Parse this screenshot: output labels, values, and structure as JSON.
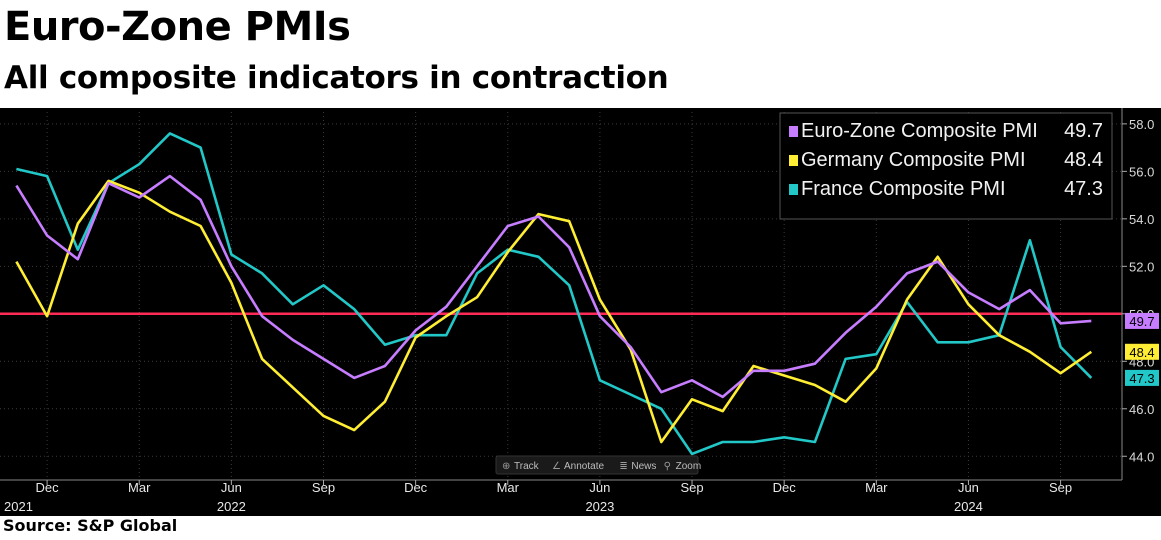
{
  "header": {
    "title": "Euro-Zone PMIs",
    "subtitle": "All composite indicators in contraction"
  },
  "footer": {
    "source": "Source: S&P Global"
  },
  "toolbar": {
    "items": [
      {
        "icon": "crosshair-icon",
        "glyph": "⊕",
        "label": "Track"
      },
      {
        "icon": "pencil-icon",
        "glyph": "∠",
        "label": "Annotate"
      },
      {
        "icon": "news-icon",
        "glyph": "≣",
        "label": "News"
      },
      {
        "icon": "magnifier-icon",
        "glyph": "⚲",
        "label": "Zoom"
      }
    ]
  },
  "chart_data": {
    "type": "line",
    "title": "",
    "ylim": [
      43.0,
      58.5
    ],
    "yticks": [
      44,
      46,
      48,
      50,
      52,
      54,
      56,
      58
    ],
    "ytick_labels": [
      "44.0",
      "46.0",
      "48.0",
      "50.0",
      "52.0",
      "54.0",
      "56.0",
      "58.0"
    ],
    "x": [
      "2021-11",
      "2021-12",
      "2022-01",
      "2022-02",
      "2022-03",
      "2022-04",
      "2022-05",
      "2022-06",
      "2022-07",
      "2022-08",
      "2022-09",
      "2022-10",
      "2022-11",
      "2022-12",
      "2023-01",
      "2023-02",
      "2023-03",
      "2023-04",
      "2023-05",
      "2023-06",
      "2023-07",
      "2023-08",
      "2023-09",
      "2023-10",
      "2023-11",
      "2023-12",
      "2024-01",
      "2024-02",
      "2024-03",
      "2024-04",
      "2024-05",
      "2024-06",
      "2024-07",
      "2024-08",
      "2024-09",
      "2024-10"
    ],
    "xlim": [
      "2021-10-15",
      "2024-10-31"
    ],
    "month_ticks": [
      {
        "date": "2021-12",
        "label": "Dec"
      },
      {
        "date": "2022-03",
        "label": "Mar"
      },
      {
        "date": "2022-06",
        "label": "Jun"
      },
      {
        "date": "2022-09",
        "label": "Sep"
      },
      {
        "date": "2022-12",
        "label": "Dec"
      },
      {
        "date": "2023-03",
        "label": "Mar"
      },
      {
        "date": "2023-06",
        "label": "Jun"
      },
      {
        "date": "2023-09",
        "label": "Sep"
      },
      {
        "date": "2023-12",
        "label": "Dec"
      },
      {
        "date": "2024-03",
        "label": "Mar"
      },
      {
        "date": "2024-06",
        "label": "Jun"
      },
      {
        "date": "2024-09",
        "label": "Sep"
      }
    ],
    "year_labels": [
      {
        "date": "2021-10",
        "label": "2021"
      },
      {
        "date": "2022-06",
        "label": "2022"
      },
      {
        "date": "2023-06",
        "label": "2023"
      },
      {
        "date": "2024-06",
        "label": "2024"
      }
    ],
    "reference_line": {
      "value": 50.0,
      "color": "#ff2a55"
    },
    "legend_position": "top-right",
    "series": [
      {
        "name": "Euro-Zone Composite PMI",
        "last": "49.7",
        "color": "#c77dff",
        "values": [
          55.4,
          53.3,
          52.3,
          55.5,
          54.9,
          55.8,
          54.8,
          52.0,
          49.9,
          48.9,
          48.1,
          47.3,
          47.8,
          49.3,
          50.3,
          52.0,
          53.7,
          54.1,
          52.8,
          49.9,
          48.6,
          46.7,
          47.2,
          46.5,
          47.6,
          47.6,
          47.9,
          49.2,
          50.3,
          51.7,
          52.2,
          50.9,
          50.2,
          51.0,
          49.6,
          49.7
        ]
      },
      {
        "name": "Germany Composite PMI",
        "last": "48.4",
        "color": "#ffee33",
        "values": [
          52.2,
          49.9,
          53.8,
          55.6,
          55.1,
          54.3,
          53.7,
          51.3,
          48.1,
          46.9,
          45.7,
          45.1,
          46.3,
          49.0,
          49.9,
          50.7,
          52.6,
          54.2,
          53.9,
          50.6,
          48.5,
          44.6,
          46.4,
          45.9,
          47.8,
          47.4,
          47.0,
          46.3,
          47.7,
          50.6,
          52.4,
          50.4,
          49.1,
          48.4,
          47.5,
          48.4
        ]
      },
      {
        "name": "France Composite PMI",
        "last": "47.3",
        "color": "#22c7c7",
        "values": [
          56.1,
          55.8,
          52.7,
          55.5,
          56.3,
          57.6,
          57.0,
          52.5,
          51.7,
          50.4,
          51.2,
          50.2,
          48.7,
          49.1,
          49.1,
          51.7,
          52.7,
          52.4,
          51.2,
          47.2,
          46.6,
          46.0,
          44.1,
          44.6,
          44.6,
          44.8,
          44.6,
          48.1,
          48.3,
          50.5,
          48.8,
          48.8,
          49.1,
          53.1,
          48.6,
          47.3
        ]
      }
    ]
  }
}
